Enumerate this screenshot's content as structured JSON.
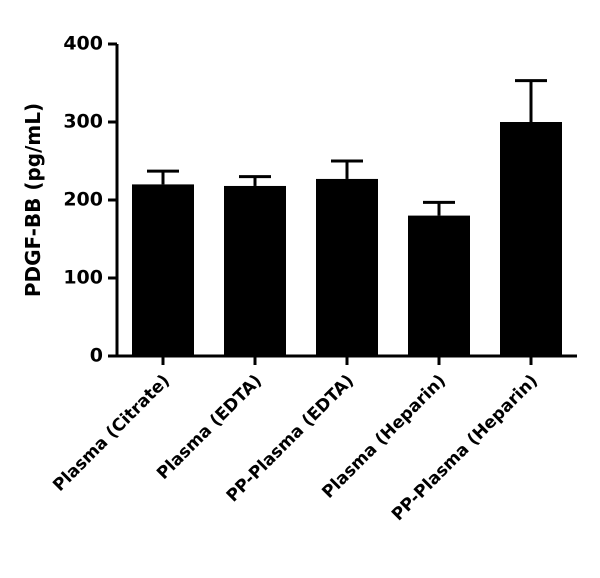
{
  "chart_data": {
    "type": "bar",
    "y_label": "PDGF-BB (pg/mL)",
    "categories": [
      "Plasma (Citrate)",
      "Plasma (EDTA)",
      "PP-Plasma (EDTA)",
      "Plasma (Heparin)",
      "PP-Plasma (Heparin)"
    ],
    "values": [
      220,
      218,
      227,
      180,
      300
    ],
    "errors": [
      17,
      12,
      23,
      17,
      53
    ],
    "color": "#000000",
    "ylim": [
      0,
      400
    ],
    "yticks": [
      0,
      100,
      200,
      300,
      400
    ],
    "grid": false
  }
}
